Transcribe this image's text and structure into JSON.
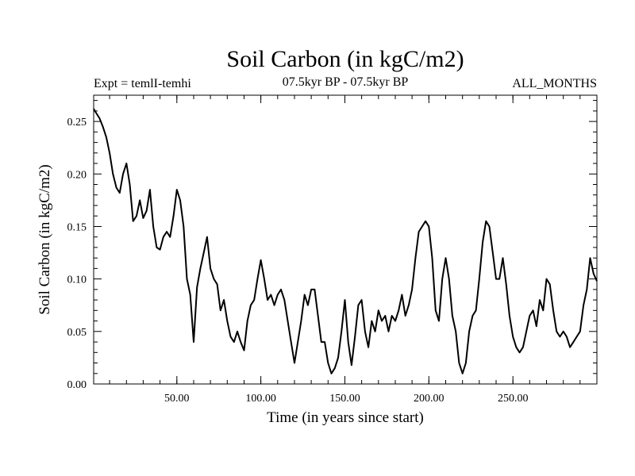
{
  "chart_data": {
    "type": "line",
    "title": "Soil Carbon (in kgC/m2)",
    "subtitle_left": "Expt = temlI-temhi",
    "subtitle_center": "07.5kyr BP - 07.5kyr BP",
    "subtitle_right": "ALL_MONTHS",
    "xlabel": "Time (in years since start)",
    "ylabel": "Soil Carbon (in kgC/m2)",
    "xlim": [
      0.5,
      300
    ],
    "ylim": [
      0,
      0.275
    ],
    "xticks": [
      50,
      100,
      150,
      200,
      250
    ],
    "xtick_labels": [
      "50.00",
      "100.00",
      "150.00",
      "200.00",
      "250.00"
    ],
    "yticks": [
      0,
      0.05,
      0.1,
      0.15,
      0.2,
      0.25
    ],
    "ytick_labels": [
      "0.00",
      "0.05",
      "0.10",
      "0.15",
      "0.20",
      "0.25"
    ],
    "series": [
      {
        "name": "Soil Carbon",
        "color": "#000000",
        "x": [
          0.5,
          2,
          4,
          6,
          8,
          10,
          12,
          14,
          16,
          18,
          20,
          22,
          24,
          26,
          28,
          30,
          32,
          34,
          36,
          38,
          40,
          42,
          44,
          46,
          48,
          50,
          52,
          54,
          56,
          58,
          60,
          62,
          64,
          66,
          68,
          70,
          72,
          74,
          76,
          78,
          80,
          82,
          84,
          86,
          88,
          90,
          92,
          94,
          96,
          98,
          100,
          102,
          104,
          106,
          108,
          110,
          112,
          114,
          116,
          118,
          120,
          122,
          124,
          126,
          128,
          130,
          132,
          134,
          136,
          138,
          140,
          142,
          144,
          146,
          148,
          150,
          152,
          154,
          156,
          158,
          160,
          162,
          164,
          166,
          168,
          170,
          172,
          174,
          176,
          178,
          180,
          182,
          184,
          186,
          188,
          190,
          192,
          194,
          196,
          198,
          200,
          202,
          204,
          206,
          208,
          210,
          212,
          214,
          216,
          218,
          220,
          222,
          224,
          226,
          228,
          230,
          232,
          234,
          236,
          238,
          240,
          242,
          244,
          246,
          248,
          250,
          252,
          254,
          256,
          258,
          260,
          262,
          264,
          266,
          268,
          270,
          272,
          274,
          276,
          278,
          280,
          282,
          284,
          286,
          288,
          290,
          292,
          294,
          296,
          298,
          300
        ],
        "y": [
          0.262,
          0.258,
          0.253,
          0.245,
          0.235,
          0.22,
          0.2,
          0.187,
          0.182,
          0.2,
          0.21,
          0.19,
          0.155,
          0.16,
          0.175,
          0.158,
          0.165,
          0.185,
          0.15,
          0.13,
          0.128,
          0.14,
          0.145,
          0.14,
          0.16,
          0.185,
          0.175,
          0.15,
          0.1,
          0.085,
          0.04,
          0.092,
          0.11,
          0.125,
          0.14,
          0.11,
          0.1,
          0.095,
          0.07,
          0.08,
          0.06,
          0.045,
          0.04,
          0.05,
          0.04,
          0.032,
          0.06,
          0.075,
          0.08,
          0.1,
          0.118,
          0.1,
          0.08,
          0.085,
          0.075,
          0.085,
          0.09,
          0.08,
          0.06,
          0.04,
          0.02,
          0.04,
          0.06,
          0.085,
          0.075,
          0.09,
          0.09,
          0.065,
          0.04,
          0.04,
          0.02,
          0.01,
          0.015,
          0.025,
          0.05,
          0.08,
          0.04,
          0.018,
          0.045,
          0.075,
          0.08,
          0.05,
          0.035,
          0.06,
          0.05,
          0.07,
          0.06,
          0.065,
          0.05,
          0.065,
          0.06,
          0.07,
          0.085,
          0.065,
          0.075,
          0.09,
          0.12,
          0.145,
          0.15,
          0.155,
          0.15,
          0.12,
          0.07,
          0.06,
          0.1,
          0.12,
          0.1,
          0.065,
          0.05,
          0.02,
          0.01,
          0.02,
          0.05,
          0.065,
          0.07,
          0.1,
          0.135,
          0.155,
          0.15,
          0.125,
          0.1,
          0.1,
          0.12,
          0.095,
          0.065,
          0.045,
          0.035,
          0.03,
          0.035,
          0.05,
          0.065,
          0.07,
          0.055,
          0.08,
          0.07,
          0.1,
          0.095,
          0.07,
          0.05,
          0.045,
          0.05,
          0.045,
          0.035,
          0.04,
          0.045,
          0.05,
          0.075,
          0.09,
          0.12,
          0.105,
          0.098
        ]
      }
    ]
  }
}
